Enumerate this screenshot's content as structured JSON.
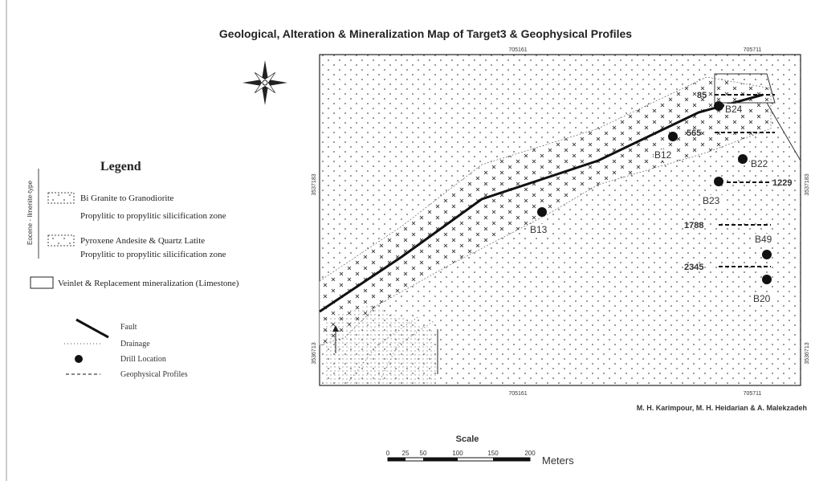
{
  "title": "Geological, Alteration & Mineralization Map of Target3 & Geophysical Profiles",
  "coordinates": {
    "top": [
      "705161",
      "705711"
    ],
    "bottom": [
      "705161",
      "705711"
    ],
    "left": [
      "3537183",
      "3536713"
    ],
    "right": [
      "3537183",
      "3536713"
    ]
  },
  "legend": {
    "title": "Legend",
    "side_label": "Eocene - Ilmenite-type",
    "units": [
      {
        "label": "Bi Granite to Granodiorite",
        "note": "Propylitic to propylitic silicification zone"
      },
      {
        "label": "Pyroxene Andesite & Quartz Latite",
        "note": "Propylitic to propylitic silicification zone"
      },
      {
        "label": "Veinlet & Replacement mineralization (Limestone)"
      }
    ],
    "symbols": [
      "Fault",
      "Drainage",
      "Drill Location",
      "Geophysical Profiles"
    ]
  },
  "drills": [
    "B24",
    "B12",
    "B22",
    "B23",
    "B13",
    "B49",
    "B20"
  ],
  "profiles": [
    "85",
    "565",
    "1229",
    "1788",
    "2345"
  ],
  "credits": "M. H. Karimpour, M. H. Heidarian & A. Malekzadeh",
  "scale": {
    "title": "Scale",
    "ticks": [
      "0",
      "25",
      "50",
      "100",
      "150",
      "200"
    ],
    "unit": "Meters"
  }
}
